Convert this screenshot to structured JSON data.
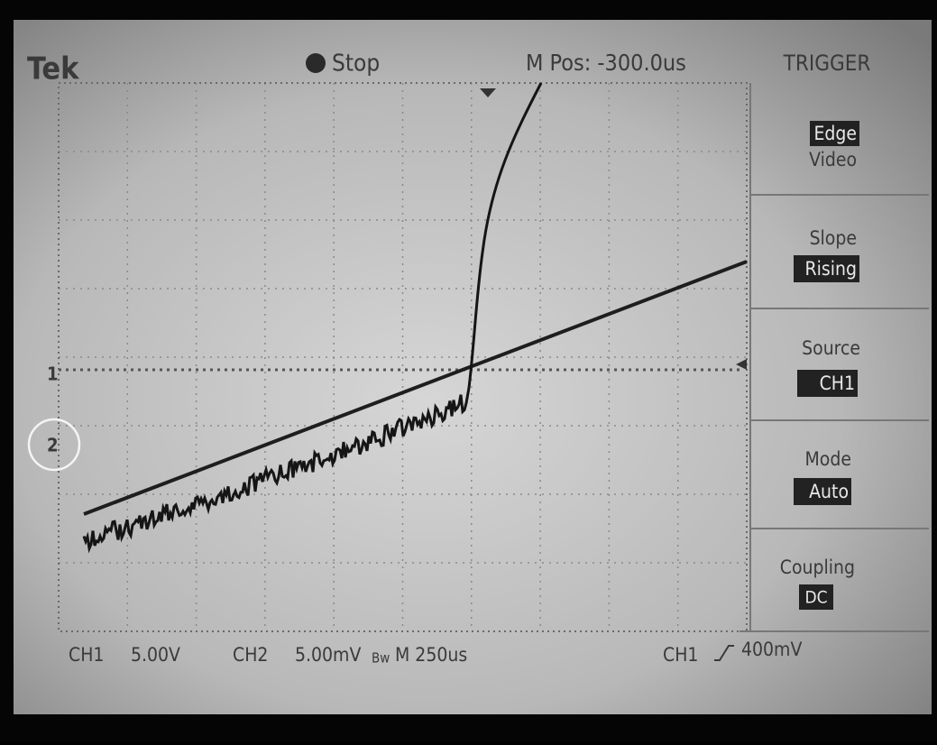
{
  "header": {
    "brand": "Tek",
    "status": "Stop",
    "position": "M Pos: -300.0us",
    "menu_title": "TRIGGER"
  },
  "markers": {
    "ch1": "1",
    "ch2": "2"
  },
  "menu": [
    {
      "lines": [
        "Edge",
        "Video"
      ]
    },
    {
      "lines": [
        "Slope",
        "Rising"
      ]
    },
    {
      "lines": [
        "Source",
        "CH1"
      ]
    },
    {
      "lines": [
        "Mode",
        "Auto"
      ]
    },
    {
      "lines": [
        "Coupling",
        "DC"
      ]
    }
  ],
  "footer": {
    "ch1": "CH1",
    "ch1_scale": "5.00V",
    "ch2": "CH2",
    "ch2_scale": "5.00mV",
    "bw": "Bw",
    "timebase": "M 250us",
    "trigger_source": "CH1",
    "trigger_level": "400mV"
  }
}
